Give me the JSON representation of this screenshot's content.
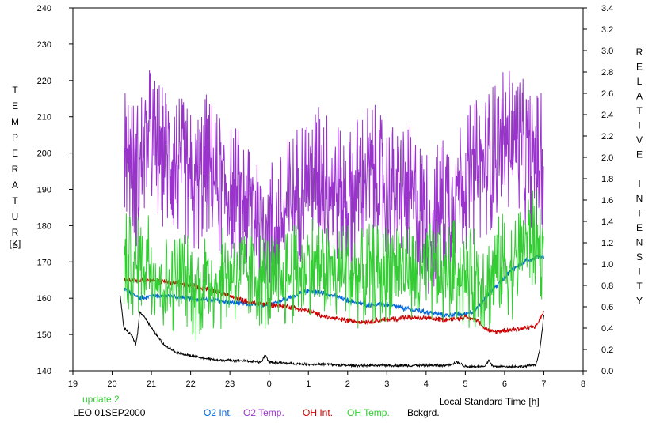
{
  "chart_data": {
    "type": "line",
    "xlabel": "Local Standard Time [h]",
    "ylabel_left": "TEMPERATURE",
    "ylabel_left_unit": "[K]",
    "ylabel_right": "RELATIVE INTENSITY",
    "x_ticks": [
      "19",
      "20",
      "21",
      "22",
      "23",
      "0",
      "1",
      "2",
      "3",
      "4",
      "5",
      "6",
      "7",
      "8"
    ],
    "y_left_ticks": [
      "140",
      "150",
      "160",
      "170",
      "180",
      "190",
      "200",
      "210",
      "220",
      "230",
      "240"
    ],
    "y_right_ticks": [
      "0.0",
      "0.2",
      "0.4",
      "0.6",
      "0.8",
      "1.0",
      "1.2",
      "1.4",
      "1.6",
      "1.8",
      "2.0",
      "2.2",
      "2.4",
      "2.6",
      "2.8",
      "3.0",
      "3.2",
      "3.4"
    ],
    "x_range": [
      19,
      32
    ],
    "y_left_range": [
      140,
      240
    ],
    "y_right_range": [
      0,
      3.4
    ],
    "grid": false,
    "legend_position": "bottom",
    "update_text": "update 2",
    "station_text": "LEO 01SEP2000",
    "series": [
      {
        "name": "O2 Int.",
        "axis": "right",
        "color": "#0066dd",
        "x": [
          20.3,
          20.7,
          21.0,
          21.5,
          22.0,
          22.5,
          23.0,
          23.5,
          24.0,
          24.5,
          25.0,
          25.5,
          26.0,
          26.5,
          27.0,
          27.5,
          28.0,
          28.5,
          29.0,
          29.3,
          29.6,
          29.9,
          30.2,
          30.5,
          30.8,
          31.0
        ],
        "y": [
          0.77,
          0.68,
          0.7,
          0.7,
          0.67,
          0.67,
          0.64,
          0.62,
          0.62,
          0.68,
          0.75,
          0.72,
          0.66,
          0.62,
          0.62,
          0.58,
          0.55,
          0.52,
          0.53,
          0.58,
          0.72,
          0.84,
          0.95,
          1.02,
          1.07,
          1.07
        ]
      },
      {
        "name": "O2 Temp.",
        "axis": "left",
        "color": "#9933cc",
        "x": [
          20.3,
          20.6,
          20.9,
          21.2,
          21.5,
          21.8,
          22.1,
          22.4,
          22.7,
          23.0,
          23.3,
          23.6,
          23.9,
          24.2,
          24.5,
          24.8,
          25.1,
          25.4,
          25.7,
          26.0,
          26.3,
          26.6,
          26.9,
          27.2,
          27.5,
          27.8,
          28.1,
          28.4,
          28.7,
          29.0,
          29.3,
          29.6,
          29.9,
          30.2,
          30.5,
          30.8,
          31.0
        ],
        "y": [
          203,
          193,
          205,
          200,
          198,
          195,
          190,
          197,
          192,
          190,
          187,
          186,
          182,
          178,
          185,
          190,
          195,
          193,
          190,
          186,
          192,
          195,
          190,
          188,
          190,
          185,
          180,
          185,
          190,
          193,
          195,
          198,
          202,
          205,
          200,
          198,
          196
        ]
      },
      {
        "name": "OH Int.",
        "axis": "right",
        "color": "#cc0000",
        "x": [
          20.3,
          20.7,
          21.0,
          21.5,
          22.0,
          22.5,
          23.0,
          23.5,
          24.0,
          24.5,
          25.0,
          25.5,
          26.0,
          26.5,
          27.0,
          27.5,
          28.0,
          28.5,
          29.0,
          29.3,
          29.5,
          29.7,
          30.0,
          30.5,
          30.8,
          31.0
        ],
        "y": [
          0.85,
          0.85,
          0.85,
          0.83,
          0.8,
          0.76,
          0.7,
          0.64,
          0.62,
          0.6,
          0.56,
          0.5,
          0.47,
          0.46,
          0.48,
          0.5,
          0.49,
          0.48,
          0.5,
          0.48,
          0.4,
          0.36,
          0.38,
          0.4,
          0.42,
          0.55
        ]
      },
      {
        "name": "OH Temp.",
        "axis": "left",
        "color": "#33cc33",
        "x": [
          20.3,
          20.6,
          20.9,
          21.2,
          21.5,
          21.8,
          22.1,
          22.4,
          22.7,
          23.0,
          23.3,
          23.6,
          23.9,
          24.2,
          24.5,
          24.8,
          25.1,
          25.4,
          25.7,
          26.0,
          26.3,
          26.6,
          26.9,
          27.2,
          27.5,
          27.8,
          28.1,
          28.4,
          28.7,
          29.0,
          29.3,
          29.6,
          29.9,
          30.2,
          30.5,
          30.8,
          31.0
        ],
        "y": [
          170,
          168,
          172,
          165,
          163,
          166,
          162,
          165,
          164,
          168,
          166,
          167,
          165,
          163,
          166,
          167,
          170,
          168,
          166,
          168,
          165,
          167,
          166,
          170,
          168,
          165,
          167,
          166,
          168,
          165,
          166,
          164,
          170,
          168,
          176,
          176,
          172
        ]
      },
      {
        "name": "Bckgrd.",
        "axis": "right",
        "color": "#000000",
        "x": [
          20.2,
          20.3,
          20.5,
          20.6,
          20.65,
          20.7,
          20.8,
          21.0,
          21.3,
          21.6,
          22.0,
          22.3,
          22.7,
          23.0,
          23.5,
          23.8,
          23.9,
          24.0,
          24.5,
          25.0,
          25.5,
          26.0,
          26.5,
          27.0,
          27.5,
          28.0,
          28.5,
          28.8,
          29.0,
          29.5,
          29.6,
          29.7,
          30.0,
          30.5,
          30.8,
          30.9,
          31.0
        ],
        "y": [
          0.72,
          0.4,
          0.33,
          0.25,
          0.35,
          0.55,
          0.52,
          0.4,
          0.25,
          0.18,
          0.14,
          0.12,
          0.1,
          0.1,
          0.09,
          0.08,
          0.15,
          0.08,
          0.07,
          0.06,
          0.06,
          0.05,
          0.05,
          0.05,
          0.05,
          0.05,
          0.05,
          0.08,
          0.04,
          0.04,
          0.1,
          0.04,
          0.04,
          0.04,
          0.06,
          0.2,
          0.52
        ]
      }
    ]
  }
}
